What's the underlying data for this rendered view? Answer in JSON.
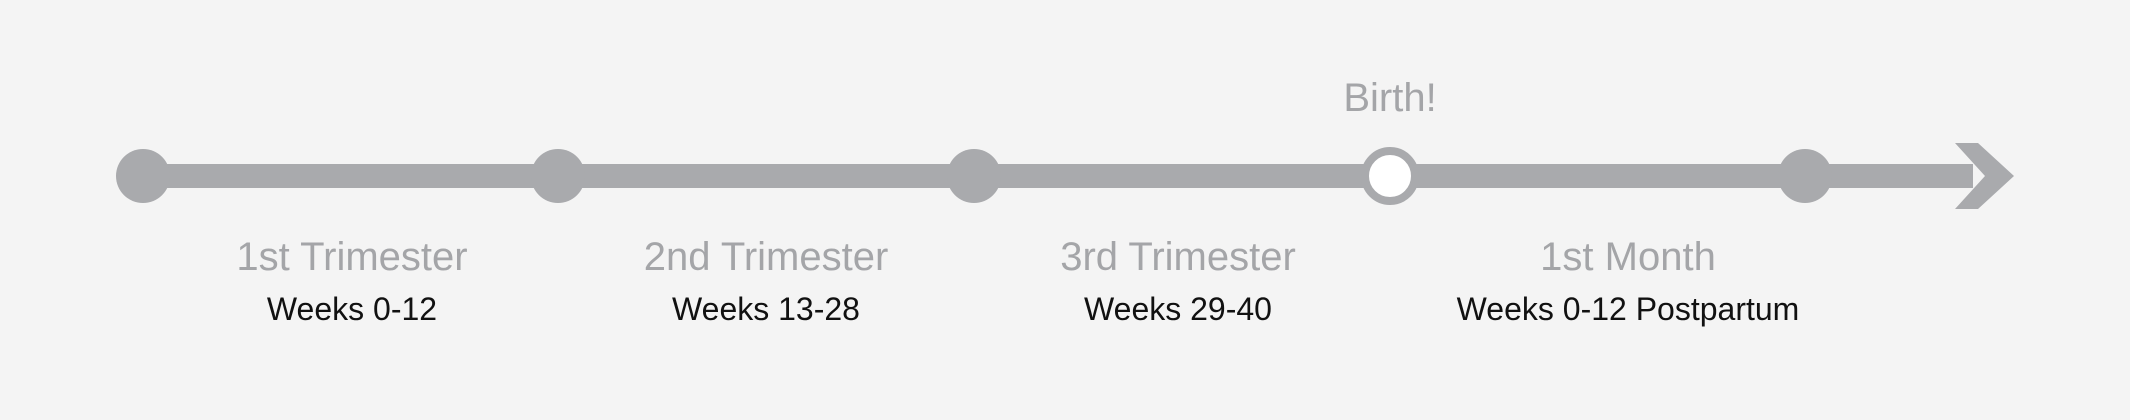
{
  "timeline": {
    "colors": {
      "line": "#a9aaad",
      "node": "#a9aaad",
      "highlight_fill": "#ffffff",
      "title_text": "#a4a5a8",
      "subtitle_text": "#111111",
      "background": "#f4f4f4"
    },
    "milestone": {
      "label": "Birth!"
    },
    "segments": [
      {
        "title": "1st Trimester",
        "subtitle": "Weeks 0-12"
      },
      {
        "title": "2nd Trimester",
        "subtitle": "Weeks 13-28"
      },
      {
        "title": "3rd Trimester",
        "subtitle": "Weeks 29-40"
      },
      {
        "title": "1st Month",
        "subtitle": "Weeks 0-12 Postpartum"
      }
    ]
  }
}
